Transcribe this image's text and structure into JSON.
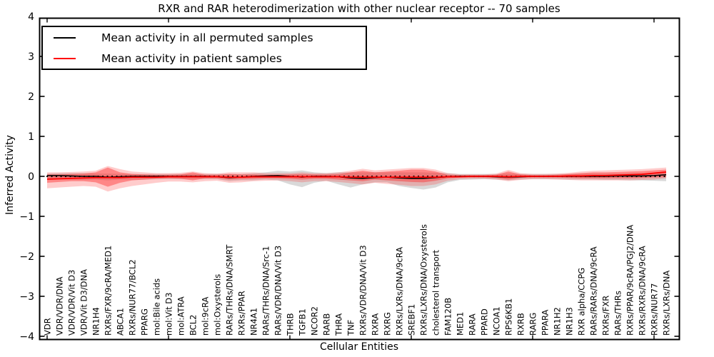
{
  "chart_data": {
    "type": "line",
    "title": "RXR and RAR heterodimerization with other nuclear receptor -- 70 samples",
    "xlabel": "Cellular Entities",
    "ylabel": "Inferred Activity",
    "ylim": [
      -4,
      4
    ],
    "yticks": [
      "4",
      "3",
      "2",
      "1",
      "0",
      "−1",
      "−2",
      "−3",
      "−4"
    ],
    "grid": false,
    "legend_position": "upper left",
    "baseline": 0,
    "categories": [
      "VDR",
      "VDR/VDR/DNA",
      "VDR/VDR/Vit D3",
      "VDR/Vit D3/DNA",
      "NR1H4",
      "RXRs/FXR/9cRA/MED1",
      "ABCA1",
      "RXRs/NUR77/BCL2",
      "PPARG",
      "mol:Bile acids",
      "mol:Vit D3",
      "mol:ATRA",
      "BCL2",
      "mol:9cRA",
      "mol:Oxysterols",
      "RARs/THRs/DNA/SMRT",
      "RXRs/PPAR",
      "NR4A1",
      "RARs/THRs/DNA/Src-1",
      "RARs/VDR/DNA/Vit D3",
      "THRB",
      "TGFB1",
      "NCOR2",
      "RARB",
      "THRA",
      "TNF",
      "RXRs/VDR/DNA/Vit D3",
      "RXRA",
      "RXRG",
      "RXRs/LXRs/DNA/9cRA",
      "SREBF1",
      "RXRs/LXRs/DNA/Oxysterols",
      "cholesterol transport",
      "FAM120B",
      "MED1",
      "RARA",
      "PPARD",
      "NCOA1",
      "RPS6KB1",
      "RXRB",
      "RARG",
      "PPARA",
      "NR1H2",
      "NR1H3",
      "RXR alpha/CCPG",
      "RARs/RARs/DNA/9cRA",
      "RXRs/FXR",
      "RARs/THRs",
      "RXRs/PPAR/9cRA/PGJ2/DNA",
      "RXRs/RXRs/DNA/9cRA",
      "RXRs/NUR77",
      "RXRs/LXRs/DNA"
    ],
    "series": [
      {
        "name": "Mean activity in all permuted samples",
        "color": "#000000",
        "values": [
          0.02,
          0.02,
          0.01,
          0.0,
          0.0,
          -0.02,
          -0.01,
          0.0,
          0.0,
          0.0,
          0.0,
          0.0,
          0.0,
          0.0,
          -0.01,
          -0.03,
          -0.02,
          0.0,
          0.01,
          0.02,
          0.0,
          -0.02,
          0.0,
          0.0,
          -0.01,
          -0.04,
          -0.05,
          -0.03,
          -0.02,
          -0.04,
          -0.05,
          -0.05,
          -0.03,
          -0.01,
          0.0,
          0.0,
          0.0,
          -0.01,
          -0.02,
          -0.01,
          0.0,
          0.0,
          0.0,
          0.0,
          0.0,
          0.0,
          0.0,
          0.01,
          0.01,
          0.01,
          0.02,
          0.04
        ]
      },
      {
        "name": "Mean activity in patient samples",
        "color": "#ff0000",
        "values": [
          -0.07,
          -0.06,
          -0.05,
          -0.04,
          -0.03,
          -0.03,
          -0.03,
          -0.02,
          -0.02,
          -0.02,
          -0.01,
          -0.01,
          -0.01,
          -0.01,
          -0.01,
          -0.02,
          -0.02,
          -0.01,
          -0.01,
          -0.01,
          -0.01,
          -0.01,
          -0.01,
          -0.01,
          -0.01,
          -0.02,
          -0.02,
          -0.02,
          -0.02,
          -0.02,
          -0.02,
          -0.02,
          -0.02,
          -0.01,
          -0.01,
          0.0,
          0.0,
          0.0,
          -0.01,
          0.0,
          0.0,
          0.0,
          0.0,
          0.01,
          0.01,
          0.02,
          0.02,
          0.03,
          0.04,
          0.05,
          0.08,
          0.11
        ]
      }
    ],
    "bands": [
      {
        "name": "permuted-samples-spread-band",
        "color": "rgba(128,128,128,0.30)",
        "lo": [
          -0.07,
          -0.08,
          -0.08,
          -0.09,
          -0.08,
          -0.1,
          -0.08,
          -0.08,
          -0.08,
          -0.07,
          -0.07,
          -0.07,
          -0.07,
          -0.07,
          -0.07,
          -0.12,
          -0.1,
          -0.1,
          -0.08,
          -0.1,
          -0.2,
          -0.27,
          -0.16,
          -0.11,
          -0.2,
          -0.28,
          -0.2,
          -0.15,
          -0.15,
          -0.24,
          -0.29,
          -0.33,
          -0.28,
          -0.15,
          -0.09,
          -0.08,
          -0.07,
          -0.08,
          -0.1,
          -0.08,
          -0.07,
          -0.07,
          -0.07,
          -0.08,
          -0.08,
          -0.08,
          -0.09,
          -0.09,
          -0.1,
          -0.1,
          -0.11,
          -0.12
        ],
        "hi": [
          0.07,
          0.08,
          0.08,
          0.08,
          0.07,
          0.07,
          0.06,
          0.06,
          0.06,
          0.06,
          0.06,
          0.06,
          0.06,
          0.06,
          0.06,
          0.06,
          0.06,
          0.08,
          0.1,
          0.14,
          0.12,
          0.15,
          0.1,
          0.08,
          0.1,
          0.1,
          0.1,
          0.1,
          0.1,
          0.1,
          0.1,
          0.1,
          0.09,
          0.08,
          0.06,
          0.06,
          0.06,
          0.06,
          0.07,
          0.06,
          0.06,
          0.06,
          0.06,
          0.06,
          0.07,
          0.07,
          0.07,
          0.07,
          0.08,
          0.08,
          0.08,
          0.09
        ]
      },
      {
        "name": "patient-samples-outer-band",
        "color": "rgba(255,50,50,0.25)",
        "lo": [
          -0.3,
          -0.28,
          -0.26,
          -0.24,
          -0.26,
          -0.38,
          -0.3,
          -0.24,
          -0.2,
          -0.16,
          -0.13,
          -0.13,
          -0.15,
          -0.12,
          -0.11,
          -0.16,
          -0.15,
          -0.12,
          -0.11,
          -0.1,
          -0.12,
          -0.15,
          -0.12,
          -0.12,
          -0.14,
          -0.17,
          -0.2,
          -0.16,
          -0.19,
          -0.21,
          -0.24,
          -0.24,
          -0.2,
          -0.11,
          -0.07,
          -0.06,
          -0.06,
          -0.08,
          -0.12,
          -0.09,
          -0.07,
          -0.07,
          -0.08,
          -0.09,
          -0.1,
          -0.1,
          -0.1,
          -0.1,
          -0.1,
          -0.09,
          -0.08,
          -0.05
        ],
        "hi": [
          0.1,
          0.1,
          0.11,
          0.12,
          0.14,
          0.26,
          0.18,
          0.12,
          0.1,
          0.08,
          0.08,
          0.09,
          0.12,
          0.08,
          0.07,
          0.1,
          0.1,
          0.1,
          0.08,
          0.08,
          0.08,
          0.1,
          0.08,
          0.08,
          0.1,
          0.14,
          0.19,
          0.15,
          0.17,
          0.19,
          0.21,
          0.21,
          0.17,
          0.08,
          0.05,
          0.05,
          0.05,
          0.07,
          0.16,
          0.08,
          0.06,
          0.06,
          0.07,
          0.09,
          0.12,
          0.14,
          0.15,
          0.16,
          0.17,
          0.18,
          0.2,
          0.22
        ]
      },
      {
        "name": "patient-samples-inner-band",
        "color": "rgba(255,30,30,0.40)",
        "lo": [
          -0.16,
          -0.14,
          -0.12,
          -0.12,
          -0.15,
          -0.26,
          -0.16,
          -0.1,
          -0.08,
          -0.06,
          -0.05,
          -0.06,
          -0.1,
          -0.05,
          -0.05,
          -0.08,
          -0.07,
          -0.06,
          -0.05,
          -0.05,
          -0.06,
          -0.08,
          -0.06,
          -0.06,
          -0.08,
          -0.1,
          -0.12,
          -0.08,
          -0.1,
          -0.12,
          -0.14,
          -0.15,
          -0.11,
          -0.05,
          -0.03,
          -0.03,
          -0.03,
          -0.04,
          -0.08,
          -0.04,
          -0.03,
          -0.03,
          -0.03,
          -0.04,
          -0.05,
          -0.05,
          -0.05,
          -0.05,
          -0.05,
          -0.04,
          -0.03,
          -0.02
        ],
        "hi": [
          0.05,
          0.05,
          0.06,
          0.07,
          0.1,
          0.22,
          0.1,
          0.06,
          0.05,
          0.04,
          0.04,
          0.05,
          0.1,
          0.04,
          0.04,
          0.06,
          0.05,
          0.05,
          0.04,
          0.04,
          0.05,
          0.06,
          0.05,
          0.05,
          0.06,
          0.1,
          0.14,
          0.1,
          0.12,
          0.14,
          0.17,
          0.17,
          0.12,
          0.04,
          0.03,
          0.03,
          0.03,
          0.04,
          0.12,
          0.05,
          0.03,
          0.03,
          0.04,
          0.06,
          0.08,
          0.1,
          0.1,
          0.11,
          0.12,
          0.13,
          0.15,
          0.17
        ]
      }
    ]
  }
}
